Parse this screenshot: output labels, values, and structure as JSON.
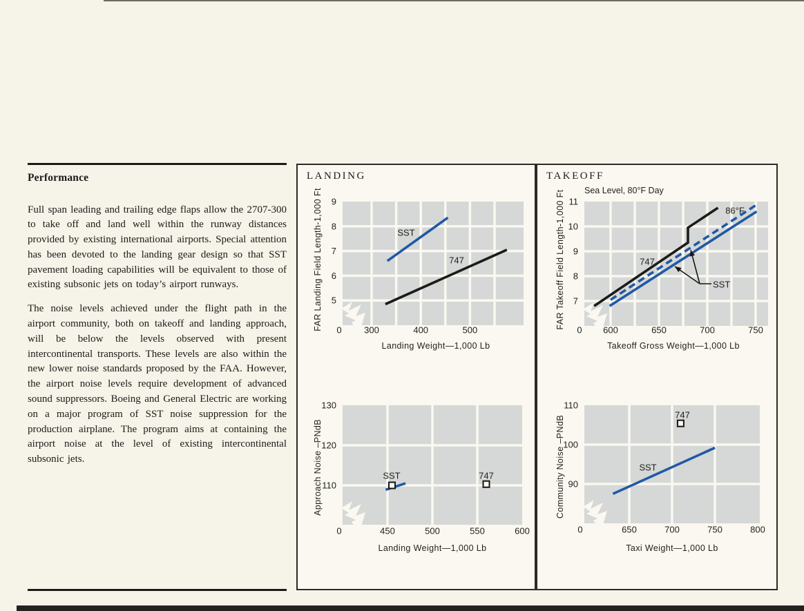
{
  "page": {
    "heading": "Performance",
    "paragraphs": [
      "Full span leading and trailing edge flaps allow the 2707-300 to take off and land well within the runway distances provided by existing international airports. Special attention has been devoted to the landing gear design so that SST pavement loading capabilities will be equivalent to those of existing subsonic jets on today’s airport runways.",
      "The noise levels achieved under the flight path in the airport community, both on takeoff and landing approach, will be below the levels observed with present intercontinental transports. These levels are also within the new lower noise standards proposed by the FAA. However, the airport noise levels require development of advanced sound suppressors. Boeing and General Electric are working on a major program of SST noise suppression for the production airplane. The program aims at containing the airport noise at the level of existing intercontinental subsonic jets."
    ]
  },
  "panels": {
    "landing": {
      "title": "LANDING"
    },
    "takeoff": {
      "title": "TAKEOFF"
    }
  },
  "colors": {
    "page_bg": "#f6f3e8",
    "panel_bg": "#faf8f0",
    "tile": "#d5d8d6",
    "blue": "#2059a6",
    "ink": "#1b1b19"
  },
  "chart_data": [
    {
      "id": "landing-field-length",
      "panel": "LANDING",
      "type": "line",
      "x_label": "Landing Weight—1,000 Lb",
      "y_label": "FAR Landing Field Length-1,000 Ft",
      "x_ticks": [
        0,
        300,
        400,
        500
      ],
      "y_ticks": [
        0,
        5,
        6,
        7,
        8,
        9
      ],
      "x_grid": [
        300,
        350,
        400,
        450,
        500,
        550
      ],
      "y_grid": [
        5,
        6,
        7,
        8
      ],
      "axis_break": true,
      "grid": true,
      "series": [
        {
          "name": "SST",
          "color": "blue",
          "points": [
            [
              332,
              6.6
            ],
            [
              455,
              8.35
            ]
          ]
        },
        {
          "name": "747",
          "color": "black",
          "points": [
            [
              328,
              4.85
            ],
            [
              575,
              7.05
            ]
          ]
        }
      ],
      "labels": [
        "SST",
        "747"
      ]
    },
    {
      "id": "approach-noise",
      "panel": "LANDING",
      "type": "scatter-line",
      "x_label": "Landing Weight—1,000 Lb",
      "y_label": "Approach Noise –PNdB",
      "x_ticks": [
        0,
        450,
        500,
        550,
        600
      ],
      "y_ticks": [
        0,
        110,
        120,
        130
      ],
      "x_grid": [
        450,
        500,
        550
      ],
      "y_grid": [
        110,
        120
      ],
      "axis_break": true,
      "grid": true,
      "series": [
        {
          "name": "SST",
          "color": "blue",
          "points": [
            [
              448,
              108.9
            ],
            [
              470,
              110.5
            ]
          ],
          "marker": [
            455,
            110
          ]
        },
        {
          "name": "747",
          "color": "black",
          "marker": [
            560,
            110.3
          ]
        }
      ],
      "labels": [
        "SST",
        "747"
      ]
    },
    {
      "id": "takeoff-field-length",
      "panel": "TAKEOFF",
      "type": "line",
      "note": "Sea Level, 80°F Day",
      "x_label": "Takeoff Gross Weight—1,000 Lb",
      "y_label": "FAR Takeoff Field Length-1,000 Ft",
      "x_ticks": [
        0,
        600,
        650,
        700,
        750
      ],
      "y_ticks": [
        0,
        7,
        8,
        9,
        10,
        11
      ],
      "x_grid": [
        600,
        625,
        650,
        675,
        700,
        725,
        750
      ],
      "y_grid": [
        7,
        8,
        9,
        10
      ],
      "axis_break": true,
      "grid": true,
      "series": [
        {
          "name": "747",
          "color": "black",
          "points": [
            [
              583,
              6.8
            ],
            [
              680,
              9.35
            ],
            [
              680,
              9.95
            ],
            [
              711,
              10.75
            ]
          ]
        },
        {
          "name": "SST (86°F)",
          "color": "blue",
          "style": "dashed",
          "points": [
            [
              600,
              7.05
            ],
            [
              750,
              10.85
            ]
          ]
        },
        {
          "name": "SST",
          "color": "blue",
          "points": [
            [
              599,
              6.8
            ],
            [
              751,
              10.6
            ]
          ]
        }
      ],
      "labels": [
        "747",
        "86°F",
        "SST"
      ]
    },
    {
      "id": "community-noise",
      "panel": "TAKEOFF",
      "type": "scatter-line",
      "x_label": "Taxi Weight—1,000 Lb",
      "y_label": "Community Noise –PNdB",
      "x_ticks": [
        0,
        650,
        700,
        750,
        800
      ],
      "y_ticks": [
        0,
        90,
        100,
        110
      ],
      "x_grid": [
        650,
        700,
        750
      ],
      "y_grid": [
        90,
        100
      ],
      "axis_break": true,
      "grid": true,
      "series": [
        {
          "name": "SST",
          "color": "blue",
          "points": [
            [
              631,
              87.5
            ],
            [
              750,
              99.2
            ]
          ]
        },
        {
          "name": "747",
          "color": "black",
          "marker": [
            710,
            105.4
          ]
        }
      ],
      "labels": [
        "SST",
        "747"
      ]
    }
  ]
}
